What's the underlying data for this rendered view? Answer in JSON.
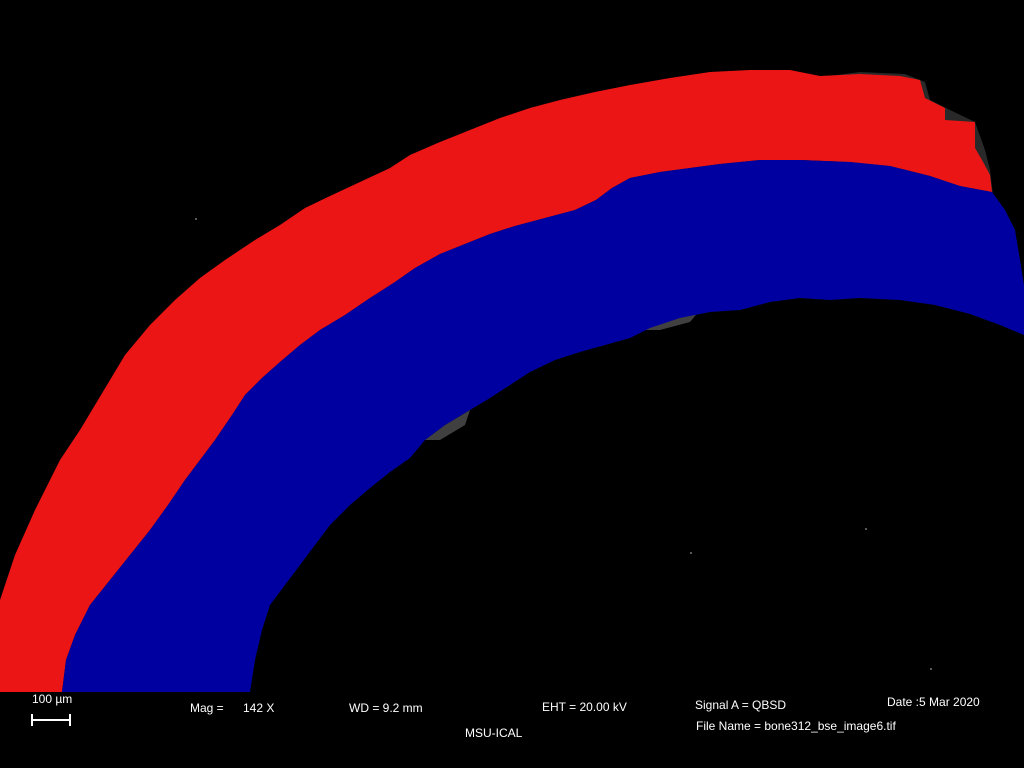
{
  "image": {
    "overlay_colors": {
      "outer_layer": "#ec1515",
      "inner_layer": "#0000a0",
      "background": "#000000"
    }
  },
  "databar": {
    "scale_label": "100 µm",
    "mag_label": "Mag =",
    "mag_value": "142 X",
    "wd": "WD =  9.2 mm",
    "eht": "EHT = 20.00 kV",
    "signal": "Signal A = QBSD",
    "date": "Date :5 Mar 2020",
    "filename": "File Name = bone312_bse_image6.tif",
    "institution": "MSU-ICAL"
  }
}
